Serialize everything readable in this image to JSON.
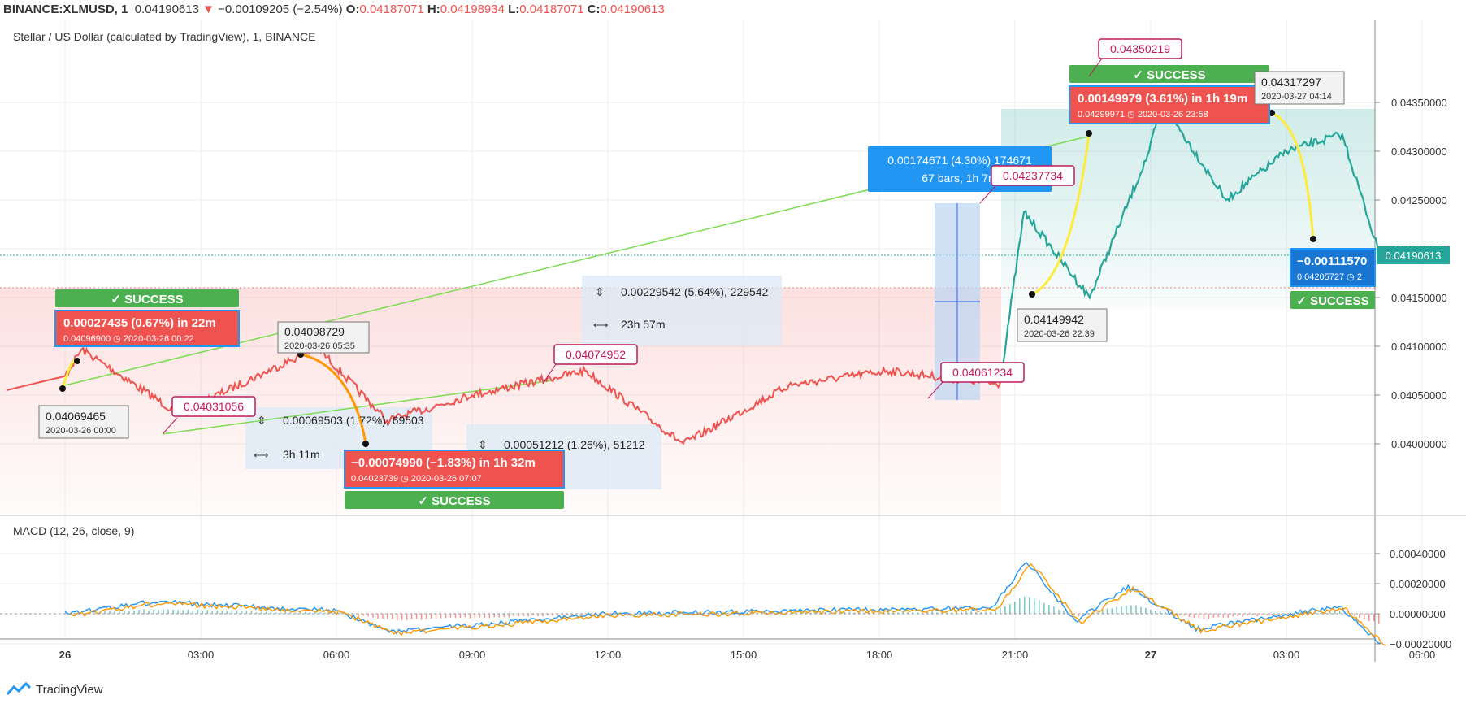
{
  "header": {
    "symbol": "BINANCE:XLMUSD, 1",
    "last": "0.04190613",
    "change": "−0.00109205 (−2.54%)",
    "o_label": "O:",
    "o": "0.04187071",
    "h_label": "H:",
    "h": "0.04198934",
    "l_label": "L:",
    "l": "0.04187071",
    "c_label": "C:",
    "c": "0.04190613"
  },
  "main_pane": {
    "title": "Stellar / US Dollar (calculated by TradingView), 1, BINANCE"
  },
  "macd_pane": {
    "title": "MACD (12, 26, close, 9)"
  },
  "price_axis": {
    "ticks": [
      "0.04350000",
      "0.04300000",
      "0.04250000",
      "0.04200000",
      "0.04150000",
      "0.04100000",
      "0.04050000",
      "0.04000000"
    ],
    "last_price_label": "0.04190613"
  },
  "macd_axis": {
    "ticks": [
      "0.00040000",
      "0.00020000",
      "0.00000000",
      "−0.00020000"
    ]
  },
  "time_axis": {
    "ticks": [
      "26",
      "03:00",
      "06:00",
      "09:00",
      "12:00",
      "15:00",
      "18:00",
      "21:00",
      "27",
      "03:00",
      "06:00"
    ]
  },
  "annotations": {
    "success_label": "✓ SUCCESS",
    "box1_title": "0.00027435 (0.67%) in 22m",
    "box1_sub": "0.04096900 ◷ 2020-03-26  00:22",
    "box2_title": "−0.00074990 (−1.83%) in 1h 32m",
    "box2_sub": "0.04023739 ◷ 2020-03-26  07:07",
    "box3_title": "0.00149979 (3.61%) in 1h 19m",
    "box3_sub": "0.04299971 ◷ 2020-03-26  23:58",
    "box4_title": "−0.00111570",
    "box4_sub": "0.04205727 ◷ 2",
    "gray1_price": "0.04069465",
    "gray1_date": "2020-03-26 00:00",
    "gray2_price": "0.04098729",
    "gray2_date": "2020-03-26 05:35",
    "gray3_price": "0.04149942",
    "gray3_date": "2020-03-26 22:39",
    "gray4_price": "0.04317297",
    "gray4_date": "2020-03-27 04:14",
    "pink1": "0.04031056",
    "pink2": "0.04074952",
    "pink3": "0.04061234",
    "pink4": "0.04237734",
    "pink5": "0.04350219",
    "range1_price": "0.00069503 (1.72%), 69503",
    "range1_time": "3h 11m",
    "range2_price": "0.00051212 (1.26%), 51212",
    "range3_price": "0.00229542 (5.64%), 229542",
    "range3_time": "23h 57m",
    "range4_title": "0.00174671 (4.30%) 174671",
    "range4_sub": "67 bars, 1h 7m"
  },
  "chart_data": {
    "type": "line",
    "symbol": "XLMUSD",
    "interval": "1m",
    "x": [
      "2020-03-26 00:00",
      "2020-03-26 00:22",
      "2020-03-26 02:30",
      "2020-03-26 05:35",
      "2020-03-26 07:07",
      "2020-03-26 09:00",
      "2020-03-26 11:30",
      "2020-03-26 13:40",
      "2020-03-26 16:00",
      "2020-03-26 18:10",
      "2020-03-26 20:40",
      "2020-03-26 21:12",
      "2020-03-26 22:39",
      "2020-03-26 23:58",
      "2020-03-27 00:15",
      "2020-03-27 01:40",
      "2020-03-27 03:00",
      "2020-03-27 04:14",
      "2020-03-27 05:05"
    ],
    "series": [
      {
        "values": [
          0.04069465,
          0.040969,
          0.04031056,
          0.04098729,
          0.04023739,
          0.0405,
          0.04074952,
          0.04,
          0.0406,
          0.04075,
          0.04061234,
          0.04237734,
          0.04149942,
          0.04299971,
          0.04350219,
          0.0425,
          0.043,
          0.04317297,
          0.04190613
        ]
      }
    ],
    "ylim": [
      0.0397,
      0.0438
    ],
    "macd": {
      "params": "12, 26, close, 9",
      "ylim": [
        -0.00025,
        0.00042
      ],
      "x": [
        "2020-03-26 00:00",
        "2020-03-26 02:00",
        "2020-03-26 06:00",
        "2020-03-26 07:10",
        "2020-03-26 12:00",
        "2020-03-26 20:30",
        "2020-03-26 21:15",
        "2020-03-26 22:20",
        "2020-03-26 23:30",
        "2020-03-27 01:00",
        "2020-03-27 04:10",
        "2020-03-27 05:05"
      ],
      "values": [
        0.0,
        8e-05,
        2e-05,
        -0.00012,
        0.0,
        4e-05,
        0.00035,
        -5e-05,
        0.00018,
        -0.0001,
        5e-05,
        -0.0002
      ]
    },
    "grid": true
  },
  "footer": {
    "brand": "TradingView"
  },
  "colors": {
    "price_line_up": "#26a69a",
    "price_line_down": "#ef5350",
    "success": "#4caf50",
    "pink_border": "#c2185b",
    "blue_box": "#2196f3",
    "macd_line": "#2196f3",
    "signal_line": "#ff9800"
  }
}
